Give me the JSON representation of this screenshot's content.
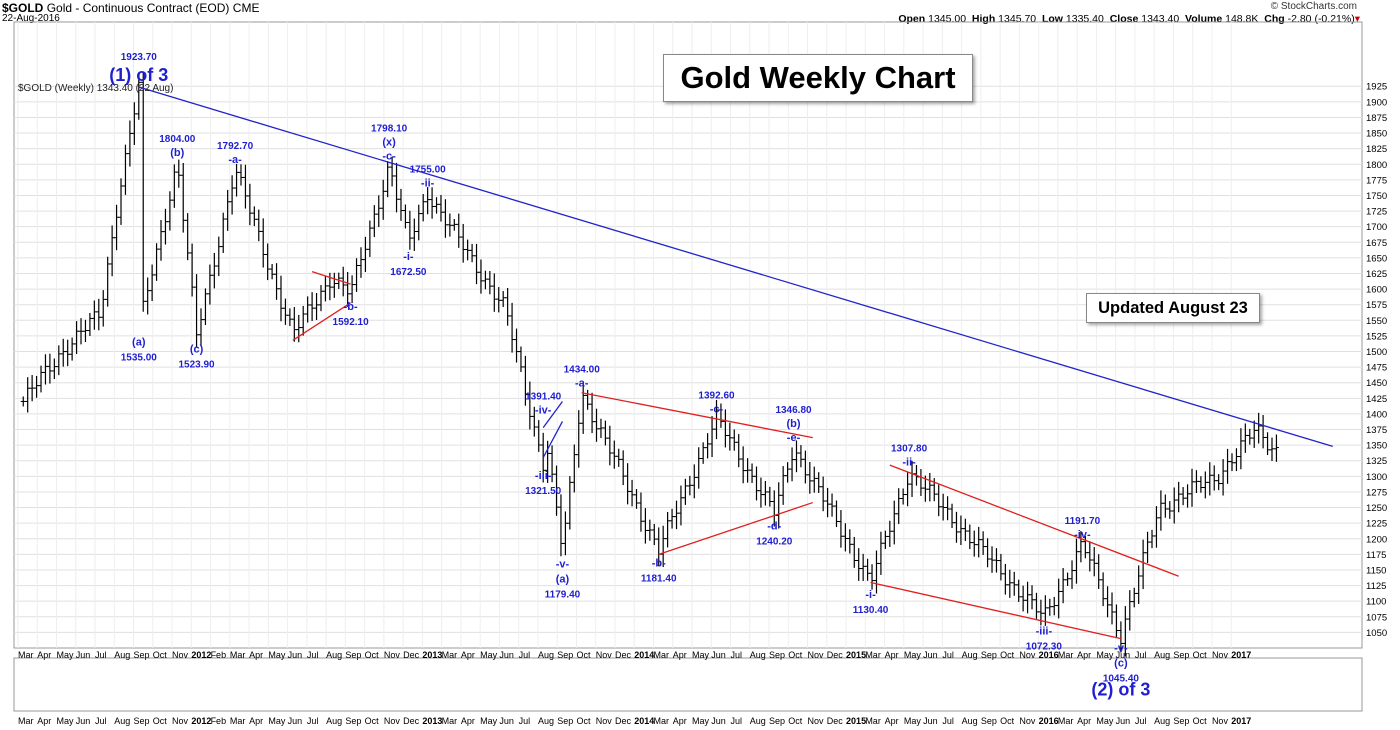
{
  "header": {
    "symbol": "$GOLD",
    "name": "Gold - Continuous Contract (EOD)",
    "exchange": "CME",
    "date": "22-Aug-2016",
    "credit": "© StockCharts.com",
    "open_label": "Open",
    "open": "1345.00",
    "high_label": "High",
    "high": "1345.70",
    "low_label": "Low",
    "low": "1335.40",
    "close_label": "Close",
    "close": "1343.40",
    "volume_label": "Volume",
    "volume": "148.8K",
    "chg_label": "Chg",
    "chg": "-2.80 (-0.21%)",
    "chg_arrow": "▾"
  },
  "legend": "$GOLD (Weekly) 1343.40 (22 Aug)",
  "title_box": "Gold Weekly Chart",
  "updated_box": "Updated August 23",
  "colors": {
    "wave_label": "#1f1fd2",
    "trendline_blue": "#2222cc",
    "trendline_red": "#e02020",
    "bars": "#000000",
    "grid": "#e0e0e0"
  },
  "chart_data": {
    "type": "ohlc-bar",
    "title": "Gold Weekly Chart",
    "x_range": [
      "2011-03",
      "2017-01"
    ],
    "ylim": [
      1025,
      1935
    ],
    "y_ticks": [
      1050,
      1075,
      1100,
      1125,
      1150,
      1175,
      1200,
      1225,
      1250,
      1275,
      1300,
      1325,
      1350,
      1375,
      1400,
      1425,
      1450,
      1475,
      1500,
      1525,
      1550,
      1575,
      1600,
      1625,
      1650,
      1675,
      1700,
      1725,
      1750,
      1775,
      1800,
      1825,
      1850,
      1875,
      1900,
      1925
    ],
    "x_tick_labels": [
      "Mar",
      "Apr",
      "May",
      "Jun",
      "Jul",
      "Aug",
      "Sep",
      "Oct",
      "Nov",
      "2012",
      "Feb",
      "Mar",
      "Apr",
      "May",
      "Jun",
      "Jul",
      "Aug",
      "Sep",
      "Oct",
      "Nov",
      "Dec",
      "2013",
      "Mar",
      "Apr",
      "May",
      "Jun",
      "Jul",
      "Aug",
      "Sep",
      "Oct",
      "Nov",
      "Dec",
      "2014",
      "Mar",
      "Apr",
      "May",
      "Jun",
      "Jul",
      "Aug",
      "Sep",
      "Oct",
      "Nov",
      "Dec",
      "2015",
      "Mar",
      "Apr",
      "May",
      "Jun",
      "Jul",
      "Aug",
      "Sep",
      "Oct",
      "Nov",
      "2016",
      "Mar",
      "Apr",
      "May",
      "Jun",
      "Jul",
      "Aug",
      "Sep",
      "Oct",
      "Nov",
      "2017"
    ],
    "price_path": [
      [
        "2011-03",
        1420
      ],
      [
        "2011-05",
        1500
      ],
      [
        "2011-07",
        1560
      ],
      [
        "2011-08",
        1760
      ],
      [
        "2011-09",
        1923.7
      ],
      [
        "2011-09",
        1535.0
      ],
      [
        "2011-11",
        1804.0
      ],
      [
        "2011-12",
        1523.9
      ],
      [
        "2012-02",
        1792.7
      ],
      [
        "2012-05",
        1527
      ],
      [
        "2012-07",
        1620
      ],
      [
        "2012-08",
        1592.1
      ],
      [
        "2012-10",
        1798.1
      ],
      [
        "2012-11",
        1672.5
      ],
      [
        "2012-12",
        1755.0
      ],
      [
        "2013-02",
        1660
      ],
      [
        "2013-04",
        1570
      ],
      [
        "2013-06",
        1321.5
      ],
      [
        "2013-06",
        1391.4
      ],
      [
        "2013-07",
        1179.4
      ],
      [
        "2013-08",
        1434.0
      ],
      [
        "2013-12",
        1181.4
      ],
      [
        "2014-03",
        1392.6
      ],
      [
        "2014-06",
        1240.2
      ],
      [
        "2014-07",
        1346.8
      ],
      [
        "2014-11",
        1130.4
      ],
      [
        "2015-01",
        1307.8
      ],
      [
        "2015-08",
        1072.3
      ],
      [
        "2015-10",
        1191.7
      ],
      [
        "2015-12",
        1045.4
      ],
      [
        "2016-02",
        1250
      ],
      [
        "2016-05",
        1300
      ],
      [
        "2016-07",
        1375
      ],
      [
        "2016-08",
        1343.4
      ]
    ],
    "wave_labels": [
      {
        "date": "2011-09",
        "price": 1923.7,
        "value": "1923.70",
        "label": "(1) of 3",
        "pos": "above"
      },
      {
        "date": "2011-09",
        "price": 1535.0,
        "value": "1535.00",
        "label": "(a)",
        "pos": "below"
      },
      {
        "date": "2011-11",
        "price": 1804.0,
        "value": "1804.00",
        "label": "(b)",
        "pos": "above"
      },
      {
        "date": "2011-12",
        "price": 1523.9,
        "value": "1523.90",
        "label": "(c)",
        "pos": "below"
      },
      {
        "date": "2012-02",
        "price": 1792.7,
        "value": "1792.70",
        "label": "-a-",
        "pos": "above"
      },
      {
        "date": "2012-08",
        "price": 1592.1,
        "value": "1592.10",
        "label": "-b-",
        "pos": "below"
      },
      {
        "date": "2012-10",
        "price": 1798.1,
        "value": "1798.10",
        "label": "(x)",
        "sublabel": "-c-",
        "pos": "above"
      },
      {
        "date": "2012-11",
        "price": 1672.5,
        "value": "1672.50",
        "label": "-i-",
        "pos": "below"
      },
      {
        "date": "2012-12",
        "price": 1755.0,
        "value": "1755.00",
        "label": "-ii-",
        "pos": "above"
      },
      {
        "date": "2013-06",
        "price": 1321.5,
        "value": "1321.50",
        "label": "-iii-",
        "pos": "below"
      },
      {
        "date": "2013-06",
        "price": 1391.4,
        "value": "1391.40",
        "label": "-iv-",
        "pos": "above"
      },
      {
        "date": "2013-07",
        "price": 1179.4,
        "value": "1179.40",
        "label": "-v-",
        "sublabel": "(a)",
        "pos": "below"
      },
      {
        "date": "2013-08",
        "price": 1434.0,
        "value": "1434.00",
        "label": "-a-",
        "pos": "above"
      },
      {
        "date": "2013-12",
        "price": 1181.4,
        "value": "1181.40",
        "label": "-b-",
        "pos": "below"
      },
      {
        "date": "2014-03",
        "price": 1392.6,
        "value": "1392.60",
        "label": "-c-",
        "pos": "above"
      },
      {
        "date": "2014-06",
        "price": 1240.2,
        "value": "1240.20",
        "label": "-d-",
        "pos": "below"
      },
      {
        "date": "2014-07",
        "price": 1346.8,
        "value": "1346.80",
        "label": "(b)",
        "sublabel": "-e-",
        "pos": "above"
      },
      {
        "date": "2014-11",
        "price": 1130.4,
        "value": "1130.40",
        "label": "-i-",
        "pos": "below"
      },
      {
        "date": "2015-01",
        "price": 1307.8,
        "value": "1307.80",
        "label": "-ii-",
        "pos": "above"
      },
      {
        "date": "2015-08",
        "price": 1072.3,
        "value": "1072.30",
        "label": "-iii-",
        "pos": "below"
      },
      {
        "date": "2015-10",
        "price": 1191.7,
        "value": "1191.70",
        "label": "-iv-",
        "pos": "above"
      },
      {
        "date": "2015-12",
        "price": 1045.4,
        "value": "1045.40",
        "label": "-v-",
        "sublabel": "(c)",
        "label2": "(2) of 3",
        "pos": "below"
      }
    ],
    "trendlines": [
      {
        "color": "blue",
        "from": [
          "2011-09",
          1923.7
        ],
        "to": [
          "2016-11",
          1348
        ]
      },
      {
        "color": "red",
        "from": [
          "2012-06",
          1628
        ],
        "to": [
          "2012-08",
          1608
        ]
      },
      {
        "color": "red",
        "from": [
          "2012-05",
          1518
        ],
        "to": [
          "2012-08",
          1578
        ]
      },
      {
        "color": "blue",
        "from": [
          "2013-06",
          1378
        ],
        "to": [
          "2013-07",
          1420
        ]
      },
      {
        "color": "blue",
        "from": [
          "2013-06",
          1330
        ],
        "to": [
          "2013-07",
          1388
        ]
      },
      {
        "color": "red",
        "from": [
          "2013-08",
          1434
        ],
        "to": [
          "2014-08",
          1362
        ]
      },
      {
        "color": "red",
        "from": [
          "2013-12",
          1175
        ],
        "to": [
          "2014-08",
          1258
        ]
      },
      {
        "color": "red",
        "from": [
          "2014-12",
          1318
        ],
        "to": [
          "2016-03",
          1140
        ]
      },
      {
        "color": "red",
        "from": [
          "2014-11",
          1130
        ],
        "to": [
          "2015-12",
          1040
        ]
      }
    ]
  }
}
